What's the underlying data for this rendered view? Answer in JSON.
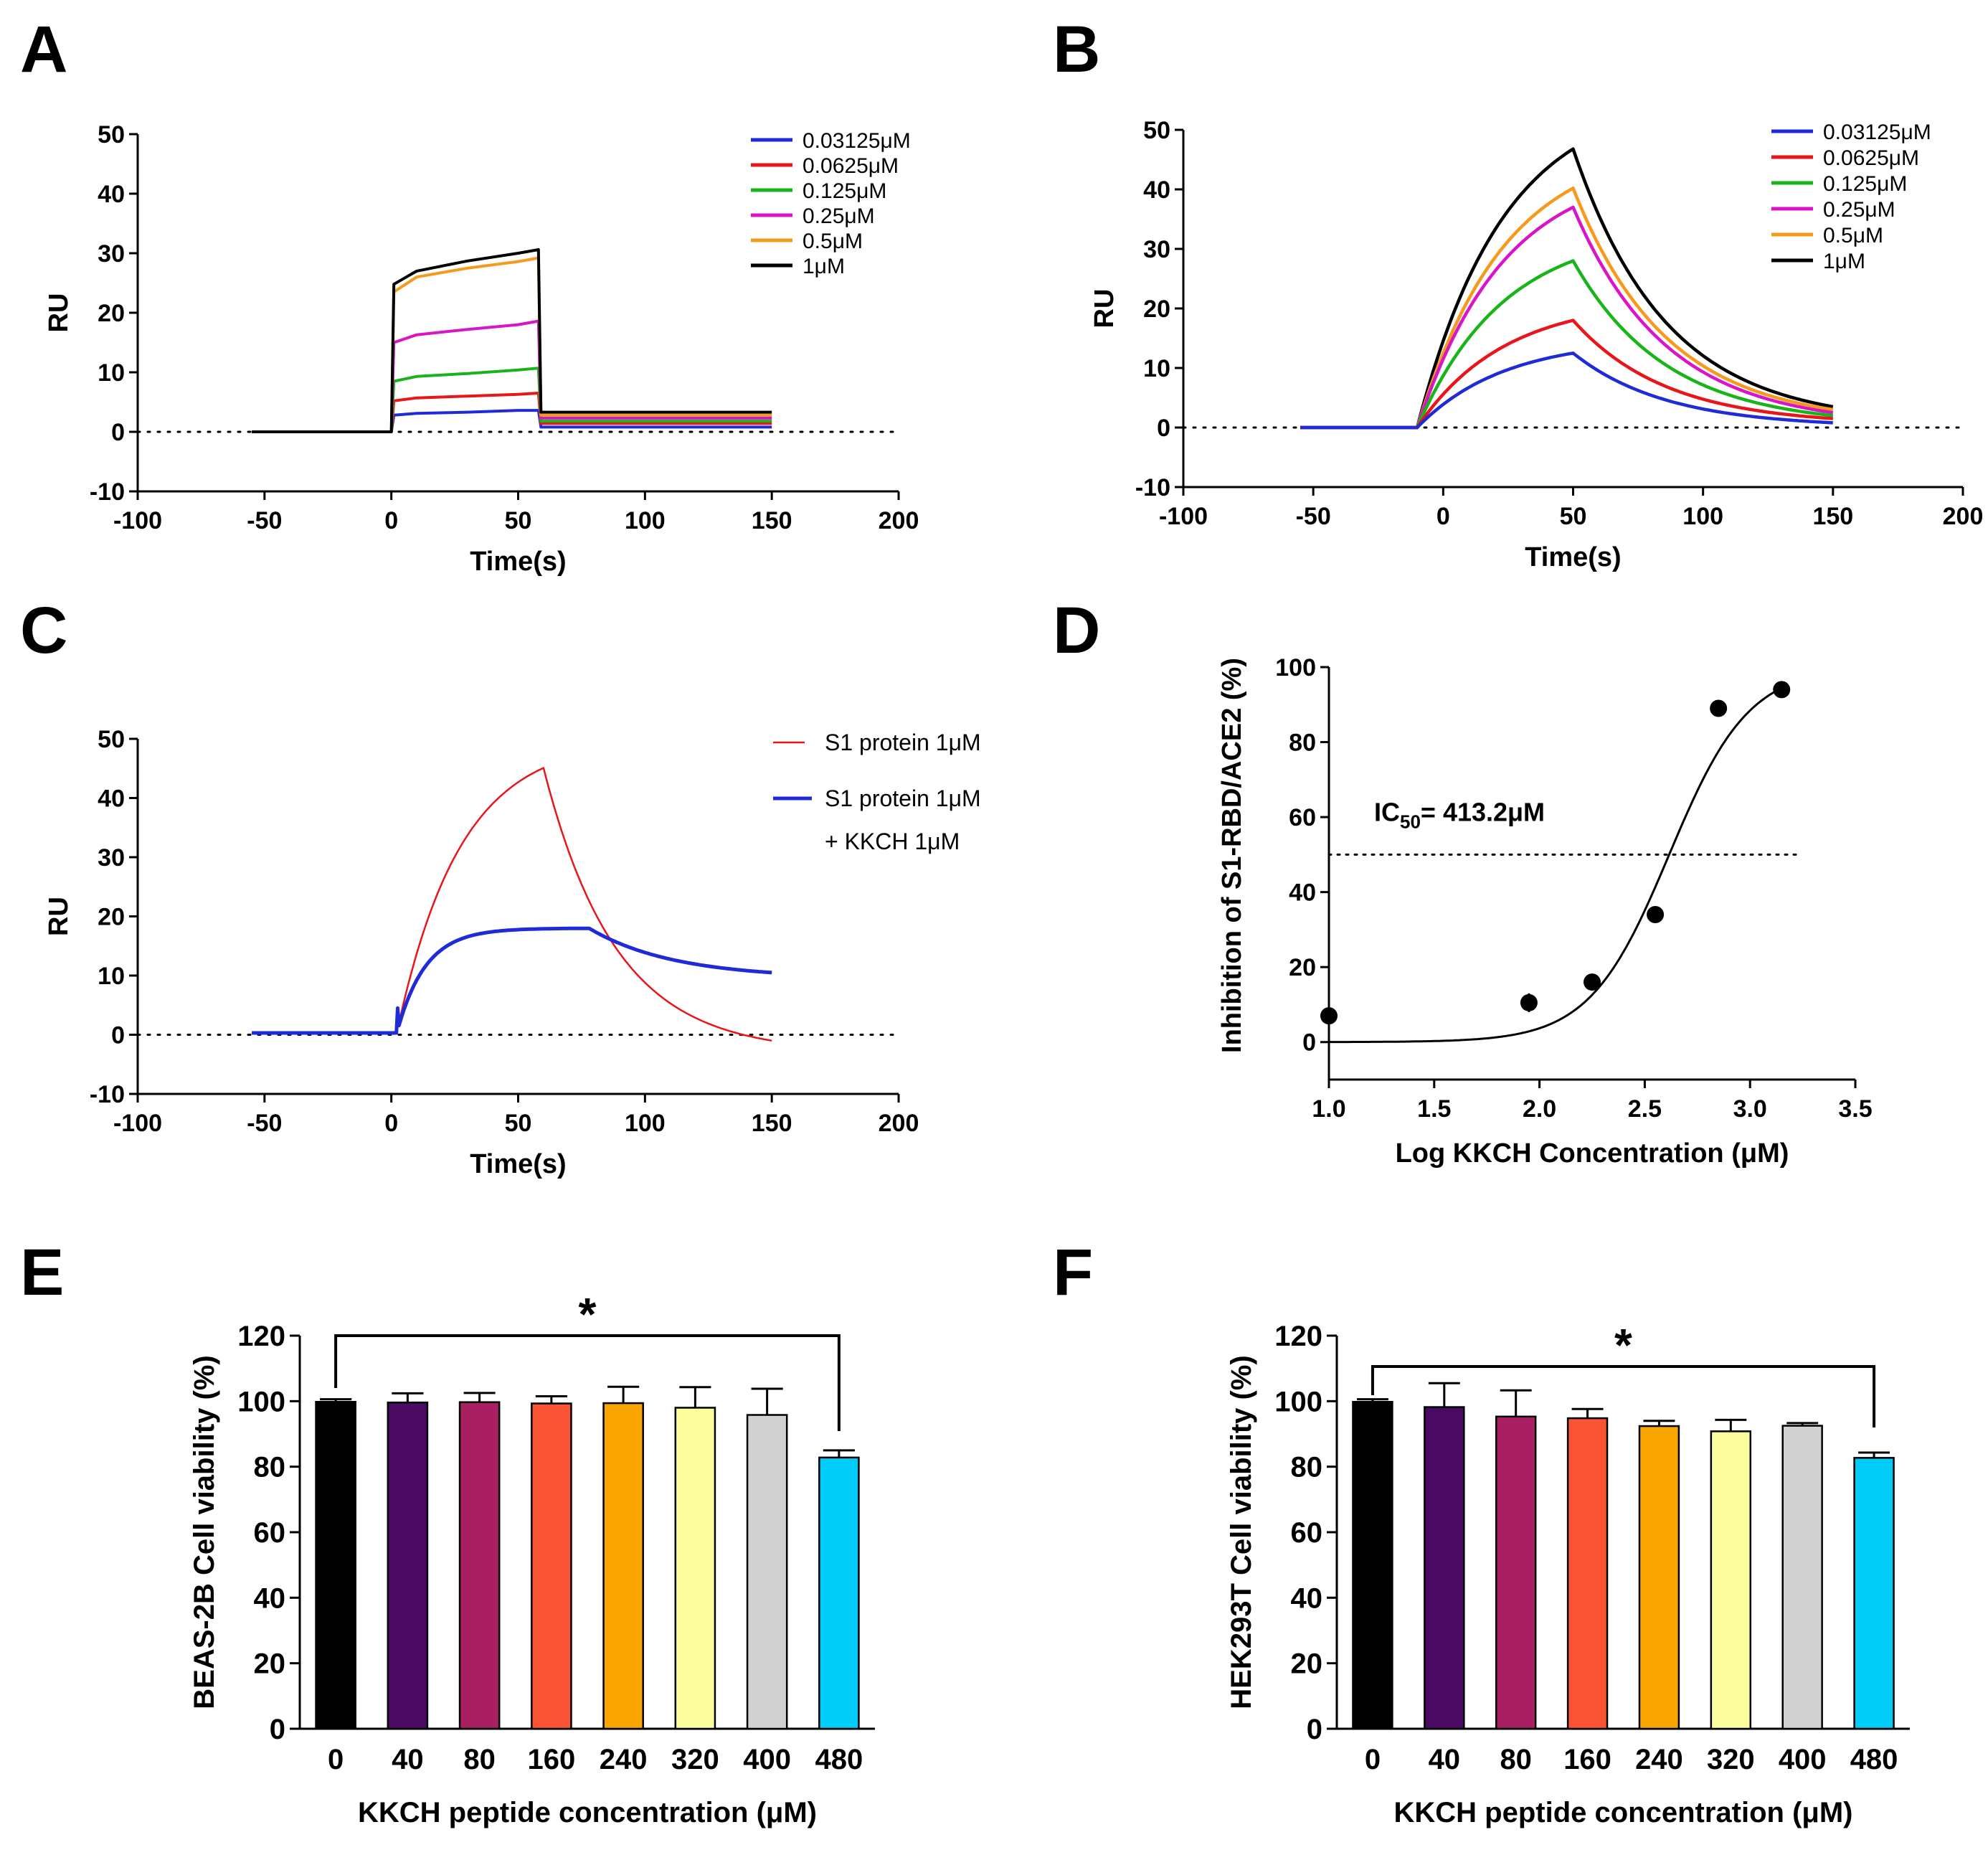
{
  "chart_data": [
    {
      "panel": "A",
      "type": "line",
      "xlabel": "Time(s)",
      "ylabel": "RU",
      "xlim": [
        -100,
        200
      ],
      "ylim": [
        -10,
        50
      ],
      "xticks": [
        "-100",
        "-50",
        "0",
        "50",
        "100",
        "150",
        "200"
      ],
      "yticks": [
        "-10",
        "0",
        "10",
        "20",
        "30",
        "40",
        "50"
      ],
      "baseline": 0,
      "legend": [
        "0.03125μM",
        "0.0625μM",
        "0.125μM",
        "0.25μM",
        "0.5μM",
        "1μM"
      ],
      "colors": [
        "#1f2bd6",
        "#e8161b",
        "#19b419",
        "#d816c8",
        "#f59a1d",
        "#000000"
      ],
      "series": [
        {
          "name": "0.03125μM",
          "points": [
            [
              -55,
              0
            ],
            [
              0,
              0
            ],
            [
              1,
              2.8
            ],
            [
              10,
              3.1
            ],
            [
              30,
              3.3
            ],
            [
              50,
              3.6
            ],
            [
              58,
              3.6
            ],
            [
              59,
              0.8
            ],
            [
              100,
              0.8
            ],
            [
              150,
              0.8
            ]
          ]
        },
        {
          "name": "0.0625μM",
          "points": [
            [
              -55,
              0
            ],
            [
              0,
              0
            ],
            [
              1,
              5.2
            ],
            [
              10,
              5.7
            ],
            [
              30,
              6
            ],
            [
              50,
              6.3
            ],
            [
              58,
              6.5
            ],
            [
              59,
              1.4
            ],
            [
              100,
              1.4
            ],
            [
              150,
              1.4
            ]
          ]
        },
        {
          "name": "0.125μM",
          "points": [
            [
              -55,
              0
            ],
            [
              0,
              0
            ],
            [
              1,
              8.5
            ],
            [
              10,
              9.3
            ],
            [
              30,
              9.8
            ],
            [
              50,
              10.4
            ],
            [
              58,
              10.7
            ],
            [
              59,
              1.8
            ],
            [
              100,
              1.8
            ],
            [
              150,
              1.8
            ]
          ]
        },
        {
          "name": "0.25μM",
          "points": [
            [
              -55,
              0
            ],
            [
              0,
              0
            ],
            [
              1,
              15
            ],
            [
              10,
              16.3
            ],
            [
              30,
              17.2
            ],
            [
              50,
              18
            ],
            [
              58,
              18.6
            ],
            [
              59,
              2.3
            ],
            [
              100,
              2.3
            ],
            [
              150,
              2.3
            ]
          ]
        },
        {
          "name": "0.5μM",
          "points": [
            [
              -55,
              0
            ],
            [
              0,
              0
            ],
            [
              1,
              23.5
            ],
            [
              10,
              26
            ],
            [
              30,
              27.5
            ],
            [
              50,
              28.6
            ],
            [
              58,
              29.2
            ],
            [
              59,
              2.8
            ],
            [
              100,
              2.8
            ],
            [
              150,
              2.8
            ]
          ]
        },
        {
          "name": "1μM",
          "points": [
            [
              -55,
              0
            ],
            [
              0,
              0
            ],
            [
              1,
              24.8
            ],
            [
              10,
              27
            ],
            [
              30,
              28.7
            ],
            [
              50,
              30
            ],
            [
              58,
              30.6
            ],
            [
              59,
              3.3
            ],
            [
              100,
              3.3
            ],
            [
              150,
              3.3
            ]
          ]
        }
      ]
    },
    {
      "panel": "B",
      "type": "line",
      "xlabel": "Time(s)",
      "ylabel": "RU",
      "xlim": [
        -100,
        200
      ],
      "ylim": [
        -10,
        50
      ],
      "xticks": [
        "-100",
        "-50",
        "0",
        "50",
        "100",
        "150",
        "200"
      ],
      "yticks": [
        "-10",
        "0",
        "10",
        "20",
        "30",
        "40",
        "50"
      ],
      "baseline": 0,
      "legend": [
        "0.03125μM",
        "0.0625μM",
        "0.125μM",
        "0.25μM",
        "0.5μM",
        "1μM"
      ],
      "colors": [
        "#1f2bd6",
        "#e8161b",
        "#19b419",
        "#d816c8",
        "#f59a1d",
        "#000000"
      ],
      "association": {
        "start": -10,
        "end": 50,
        "k": 0.03
      },
      "dissociation": {
        "end": 150,
        "k": 0.028
      },
      "plateaus": [
        12.5,
        18,
        28,
        37,
        40.2,
        46.8
      ],
      "residual": [
        0.8,
        1.5,
        2,
        2.5,
        3,
        3.5
      ]
    },
    {
      "panel": "C",
      "type": "line",
      "xlabel": "Time(s)",
      "ylabel": "RU",
      "xlim": [
        -100,
        200
      ],
      "ylim": [
        -10,
        50
      ],
      "xticks": [
        "-100",
        "-50",
        "0",
        "50",
        "100",
        "150",
        "200"
      ],
      "yticks": [
        "-10",
        "0",
        "10",
        "20",
        "30",
        "40",
        "50"
      ],
      "baseline": 0,
      "legend": [
        "S1 protein 1μM",
        "S1 protein 1μM",
        "+ KKCH 1μM"
      ],
      "series": [
        {
          "name": "S1 protein 1μM",
          "color": "#e8161b",
          "association": {
            "start": 2,
            "end": 60,
            "plateau": 50,
            "k": 0.04
          },
          "dissociation": {
            "end": 150,
            "final": -1,
            "k": 0.035
          }
        },
        {
          "name": "S1 protein 1μM + KKCH 1μM",
          "color": "#1f2bd6",
          "association": {
            "start": 2,
            "end": 78,
            "plateau": 18,
            "k": 0.09
          },
          "dissociation": {
            "end": 150,
            "final": 10.5,
            "k": 0.03
          }
        }
      ]
    },
    {
      "panel": "D",
      "type": "scatter",
      "xlabel": "Log KKCH Concentration (μM)",
      "ylabel": "Inhibition of S1-RBD/ACE2 (%)",
      "xlim": [
        1.0,
        3.5
      ],
      "ylim": [
        -10,
        100
      ],
      "xticks": [
        "1.0",
        "1.5",
        "2.0",
        "2.5",
        "3.0",
        "3.5"
      ],
      "yticks": [
        "0",
        "20",
        "40",
        "60",
        "80",
        "100"
      ],
      "reference_line": 50,
      "annotation": {
        "prefix": "IC",
        "subscript": "50",
        "suffix": "= 413.2μM"
      },
      "x": [
        1.0,
        1.95,
        2.25,
        2.55,
        2.85,
        3.15
      ],
      "y": [
        7,
        10.5,
        16,
        34,
        89,
        94
      ],
      "fit": {
        "bottom": 0,
        "top": 100,
        "logIC50": 2.616,
        "hill": 2.3,
        "from": 1.0,
        "to": 3.15
      }
    },
    {
      "panel": "E",
      "type": "bar",
      "xlabel": "KKCH peptide concentration (μM)",
      "ylabel": "BEAS-2B Cell viability (%)",
      "ylim": [
        0,
        120
      ],
      "yticks": [
        "0",
        "20",
        "40",
        "60",
        "80",
        "100",
        "120"
      ],
      "categories": [
        "0",
        "40",
        "80",
        "160",
        "240",
        "320",
        "400",
        "480"
      ],
      "values": [
        99.8,
        99.6,
        99.7,
        99.3,
        99.4,
        98,
        95.8,
        82.8
      ],
      "errors": [
        0.8,
        2.8,
        2.8,
        2.2,
        5,
        6.3,
        8,
        2.2
      ],
      "colors": [
        "#000000",
        "#4a0a64",
        "#a81f62",
        "#fb5434",
        "#f9a601",
        "#fcfd9c",
        "#d1d1d1",
        "#01cbf7"
      ],
      "significance": "*"
    },
    {
      "panel": "F",
      "type": "bar",
      "xlabel": "KKCH peptide concentration (μM)",
      "ylabel": "HEK293T Cell viability (%)",
      "ylim": [
        0,
        120
      ],
      "yticks": [
        "0",
        "20",
        "40",
        "60",
        "80",
        "100",
        "120"
      ],
      "categories": [
        "0",
        "40",
        "80",
        "160",
        "240",
        "320",
        "400",
        "480"
      ],
      "values": [
        99.8,
        98.2,
        95.3,
        94.8,
        92.4,
        90.8,
        92.5,
        82.7
      ],
      "errors": [
        0.8,
        7.3,
        8,
        2.8,
        1.6,
        3.5,
        0.8,
        1.6
      ],
      "colors": [
        "#000000",
        "#4a0a64",
        "#a81f62",
        "#fb5434",
        "#f9a601",
        "#fcfd9c",
        "#d1d1d1",
        "#01cbf7"
      ],
      "significance": "*"
    }
  ]
}
